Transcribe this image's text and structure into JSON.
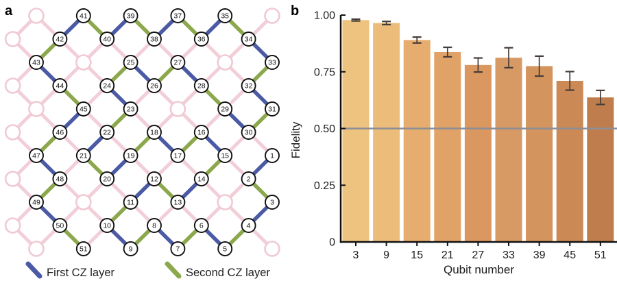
{
  "panel_a": {
    "label": "a",
    "legend": {
      "first": {
        "label": "First CZ layer",
        "color": "#4a5aa5"
      },
      "second": {
        "label": "Second CZ layer",
        "color": "#8ca84d"
      }
    },
    "lattice": {
      "colors": {
        "first_cz": "#4a5aa5",
        "second_cz": "#8ca84d",
        "idle": "#f2cfd8",
        "ghost_stroke": "#f0c9d3",
        "node_stroke": "#111111",
        "node_fill": "#ffffff",
        "number_color": "#111111"
      },
      "nodes": [
        [
          1,
          10,
          6
        ],
        [
          2,
          9,
          7
        ],
        [
          3,
          10,
          8
        ],
        [
          4,
          9,
          9
        ],
        [
          5,
          8,
          10
        ],
        [
          6,
          7,
          9
        ],
        [
          7,
          6,
          10
        ],
        [
          8,
          5,
          9
        ],
        [
          9,
          4,
          10
        ],
        [
          10,
          3,
          9
        ],
        [
          11,
          4,
          8
        ],
        [
          12,
          5,
          7
        ],
        [
          13,
          6,
          8
        ],
        [
          14,
          7,
          7
        ],
        [
          15,
          8,
          6
        ],
        [
          16,
          7,
          5
        ],
        [
          17,
          6,
          6
        ],
        [
          18,
          5,
          5
        ],
        [
          19,
          4,
          6
        ],
        [
          20,
          3,
          7
        ],
        [
          21,
          2,
          6
        ],
        [
          22,
          3,
          5
        ],
        [
          23,
          4,
          4
        ],
        [
          24,
          3,
          3
        ],
        [
          25,
          4,
          2
        ],
        [
          26,
          5,
          3
        ],
        [
          27,
          6,
          2
        ],
        [
          28,
          7,
          3
        ],
        [
          29,
          8,
          4
        ],
        [
          30,
          9,
          5
        ],
        [
          31,
          10,
          4
        ],
        [
          32,
          9,
          3
        ],
        [
          33,
          10,
          2
        ],
        [
          34,
          9,
          1
        ],
        [
          35,
          8,
          0
        ],
        [
          36,
          7,
          1
        ],
        [
          37,
          6,
          0
        ],
        [
          38,
          5,
          1
        ],
        [
          39,
          4,
          0
        ],
        [
          40,
          3,
          1
        ],
        [
          41,
          2,
          0
        ],
        [
          42,
          1,
          1
        ],
        [
          43,
          0,
          2
        ],
        [
          44,
          1,
          3
        ],
        [
          45,
          2,
          4
        ],
        [
          46,
          1,
          5
        ],
        [
          47,
          0,
          6
        ],
        [
          48,
          1,
          7
        ],
        [
          49,
          0,
          8
        ],
        [
          50,
          1,
          9
        ],
        [
          51,
          2,
          10
        ]
      ],
      "ghost_sites": [
        [
          -1,
          1
        ],
        [
          -1,
          3
        ],
        [
          -1,
          5
        ],
        [
          -1,
          7
        ],
        [
          -1,
          9
        ],
        [
          0,
          0
        ],
        [
          10,
          0
        ],
        [
          2,
          2
        ],
        [
          8,
          2
        ],
        [
          0,
          4
        ],
        [
          6,
          4
        ],
        [
          2,
          8
        ],
        [
          8,
          8
        ],
        [
          0,
          10
        ],
        [
          10,
          10
        ]
      ],
      "first_cz_pairs": [
        [
          1,
          2
        ],
        [
          3,
          4
        ],
        [
          5,
          6
        ],
        [
          7,
          8
        ],
        [
          9,
          10
        ],
        [
          11,
          12
        ],
        [
          13,
          14
        ],
        [
          15,
          16
        ],
        [
          17,
          18
        ],
        [
          19,
          20
        ],
        [
          21,
          22
        ],
        [
          23,
          24
        ],
        [
          25,
          26
        ],
        [
          27,
          28
        ],
        [
          29,
          30
        ],
        [
          31,
          32
        ],
        [
          33,
          34
        ],
        [
          35,
          36
        ],
        [
          37,
          38
        ],
        [
          39,
          40
        ],
        [
          41,
          42
        ],
        [
          43,
          44
        ],
        [
          45,
          46
        ],
        [
          47,
          48
        ],
        [
          49,
          50
        ]
      ],
      "second_cz_pairs": [
        [
          2,
          3
        ],
        [
          4,
          5
        ],
        [
          6,
          7
        ],
        [
          8,
          9
        ],
        [
          10,
          11
        ],
        [
          12,
          13
        ],
        [
          14,
          15
        ],
        [
          16,
          17
        ],
        [
          18,
          19
        ],
        [
          20,
          21
        ],
        [
          22,
          23
        ],
        [
          24,
          25
        ],
        [
          26,
          27
        ],
        [
          28,
          29
        ],
        [
          30,
          31
        ],
        [
          32,
          33
        ],
        [
          34,
          35
        ],
        [
          36,
          37
        ],
        [
          38,
          39
        ],
        [
          40,
          41
        ],
        [
          42,
          43
        ],
        [
          44,
          45
        ],
        [
          46,
          47
        ],
        [
          48,
          49
        ],
        [
          50,
          51
        ]
      ]
    }
  },
  "panel_b": {
    "label": "b"
  },
  "chart_data": {
    "type": "bar",
    "title": "",
    "xlabel": "Qubit number",
    "ylabel": "Fidelity",
    "categories": [
      "3",
      "9",
      "15",
      "21",
      "27",
      "33",
      "39",
      "45",
      "51"
    ],
    "values": [
      0.978,
      0.965,
      0.89,
      0.837,
      0.78,
      0.812,
      0.775,
      0.71,
      0.637
    ],
    "errors": [
      0.004,
      0.007,
      0.013,
      0.021,
      0.031,
      0.044,
      0.044,
      0.041,
      0.031
    ],
    "bar_colors": [
      "#eec27f",
      "#ecbd7a",
      "#e6ad6e",
      "#e0a267",
      "#da9860",
      "#d89a64",
      "#d3945d",
      "#cb8a55",
      "#bf7d4d"
    ],
    "error_bar_color": "#463c38",
    "reference_line": {
      "value": 0.5,
      "color": "#8e8e96"
    },
    "ytick_labels": [
      "1.00",
      "0.75",
      "0.50",
      "0.25",
      "0"
    ],
    "ytick_values": [
      1.0,
      0.75,
      0.5,
      0.25,
      0
    ],
    "ylim": [
      0,
      1.0
    ],
    "axis_color": "#111111",
    "grid": false,
    "legend_position": "none"
  }
}
